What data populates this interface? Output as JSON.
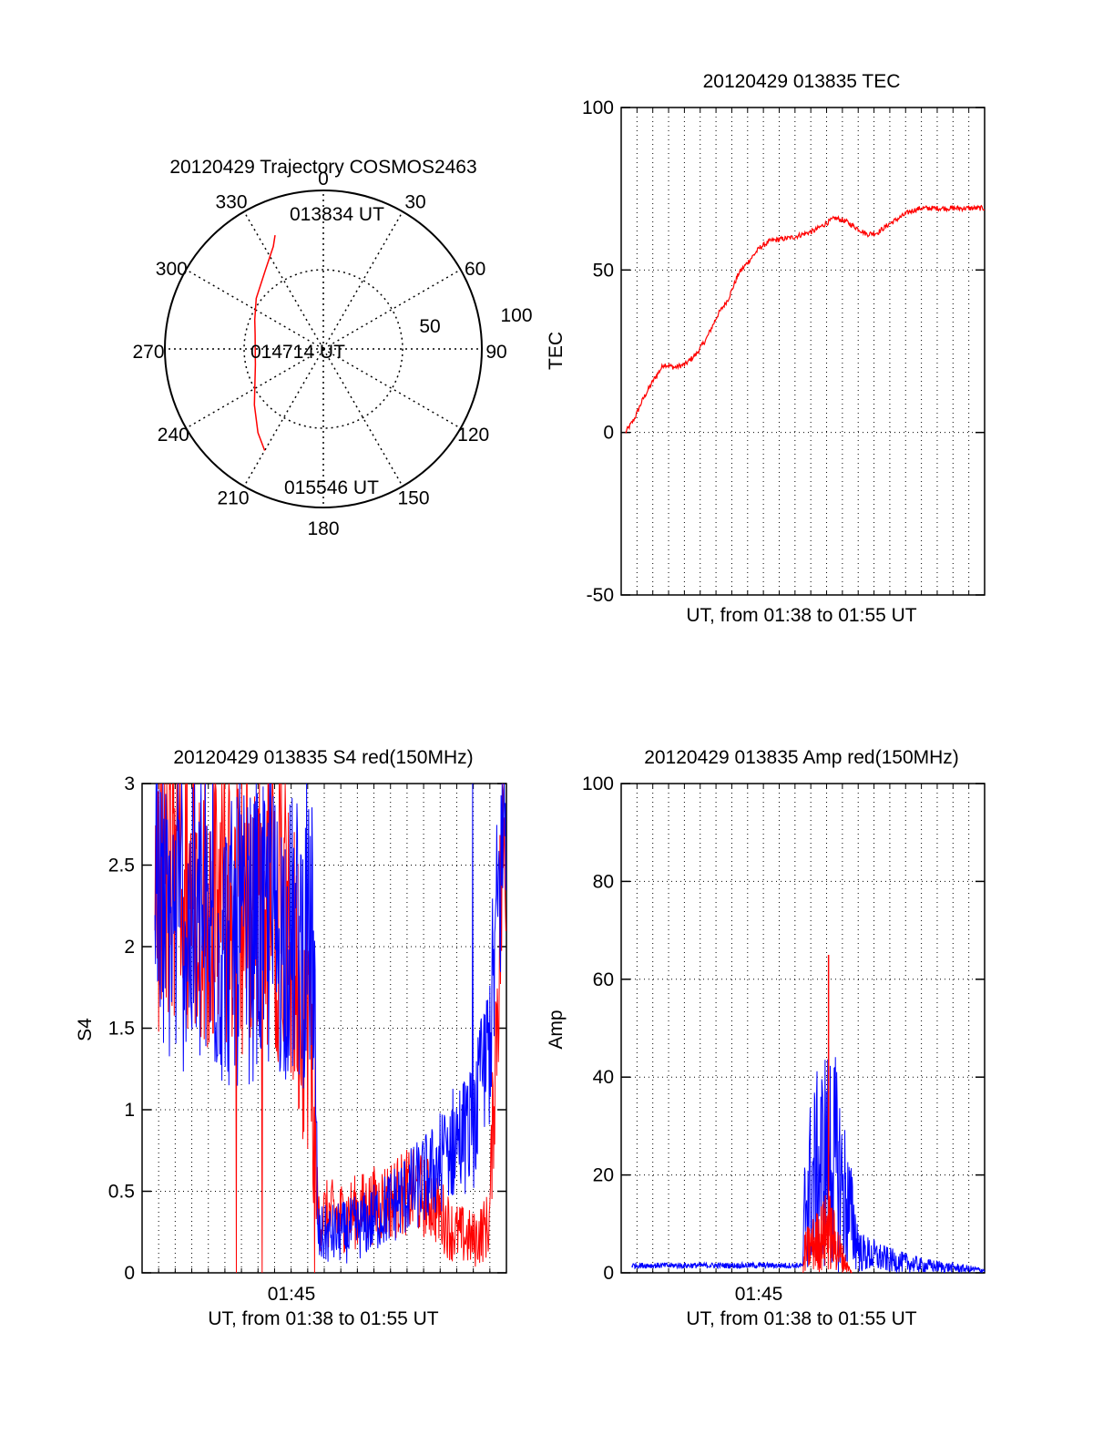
{
  "figure": {
    "background": "#ffffff"
  },
  "colors": {
    "red": "#ff0000",
    "blue": "#0000ff",
    "axis": "#000000",
    "grid": "#000000"
  },
  "chart_data": [
    {
      "id": "trajectory",
      "type": "polar",
      "title": "20120429 Trajectory COSMOS2463",
      "angle_labels": [
        "0",
        "30",
        "60",
        "90",
        "120",
        "150",
        "180",
        "210",
        "240",
        "270",
        "300",
        "330"
      ],
      "radial_labels": [
        "50",
        "100"
      ],
      "radial_range": [
        0,
        100
      ],
      "point_labels": [
        "013834 UT",
        "014714 UT",
        "015546 UT"
      ],
      "series": [
        {
          "color": "#ff0000",
          "azimuth_deg": [
            337,
            334,
            324,
            307,
            293,
            282,
            270,
            257,
            244,
            231,
            218,
            210
          ],
          "zenith_dist": [
            78,
            72,
            62,
            53,
            47,
            44,
            43,
            44,
            48,
            56,
            67,
            74
          ]
        }
      ],
      "grid": true
    },
    {
      "id": "tec",
      "type": "line",
      "title": "20120429 013835 TEC",
      "ylabel": "TEC",
      "xlabel": "UT, from 01:38 to 01:55 UT",
      "ylim": [
        -50,
        100
      ],
      "yticks": [
        "100",
        "50",
        "0",
        "-50"
      ],
      "xlim": [
        0,
        17
      ],
      "x_gridlines": 23,
      "grid": true,
      "series": [
        {
          "color": "#ff0000",
          "x": [
            0.2,
            0.6,
            1.0,
            1.5,
            2.0,
            2.5,
            3.0,
            3.5,
            4.0,
            4.5,
            5.0,
            5.5,
            6.0,
            6.5,
            7.0,
            7.5,
            8.0,
            8.5,
            9.0,
            9.5,
            10.0,
            10.5,
            11.0,
            11.5,
            12.0,
            12.5,
            13.0,
            13.5,
            14.0,
            14.5,
            15.0,
            15.5,
            16.0,
            16.5,
            17.0
          ],
          "y": [
            0,
            4,
            10,
            16,
            21,
            20,
            21,
            24,
            29,
            36,
            41,
            49,
            53,
            57,
            59,
            59.5,
            60,
            61,
            62,
            64,
            66,
            65,
            63,
            61,
            61.5,
            64,
            66,
            68,
            69,
            69,
            69,
            69,
            69,
            69,
            69
          ]
        }
      ]
    },
    {
      "id": "s4",
      "type": "line",
      "title": "20120429 013835 S4 red(150MHz)",
      "ylabel": "S4",
      "xlabel": "UT, from 01:38 to 01:55 UT",
      "xtick_label": "01:45",
      "ylim": [
        0,
        3
      ],
      "yticks": [
        "3",
        "2.5",
        "2",
        "1.5",
        "1",
        "0.5",
        "0"
      ],
      "xlim": [
        0,
        17
      ],
      "grid": true,
      "series": [
        {
          "color": "#0000ff",
          "base": [
            [
              0.0,
              2.2
            ],
            [
              2.0,
              2.1
            ],
            [
              4.0,
              2.0
            ],
            [
              6.0,
              2.1
            ],
            [
              8.0,
              2.0
            ],
            [
              8.2,
              0.22
            ],
            [
              9.5,
              0.25
            ],
            [
              10.5,
              0.3
            ],
            [
              11.5,
              0.4
            ],
            [
              12.5,
              0.5
            ],
            [
              13.5,
              0.6
            ],
            [
              14.5,
              0.8
            ],
            [
              15.5,
              0.9
            ],
            [
              16.2,
              1.4
            ],
            [
              17.0,
              3.0
            ]
          ]
        },
        {
          "color": "#ff0000",
          "base": [
            [
              0.0,
              2.4
            ],
            [
              2.0,
              2.3
            ],
            [
              4.0,
              2.2
            ],
            [
              6.0,
              2.3
            ],
            [
              7.8,
              1.6
            ],
            [
              8.2,
              0.35
            ],
            [
              9.5,
              0.35
            ],
            [
              10.5,
              0.4
            ],
            [
              11.5,
              0.45
            ],
            [
              12.5,
              0.5
            ],
            [
              13.5,
              0.45
            ],
            [
              14.5,
              0.25
            ],
            [
              15.5,
              0.2
            ],
            [
              16.2,
              0.3
            ],
            [
              16.6,
              1.8
            ],
            [
              17.0,
              3.0
            ]
          ]
        }
      ]
    },
    {
      "id": "amp",
      "type": "line",
      "title": "20120429 013835 Amp red(150MHz)",
      "ylabel": "Amp",
      "xlabel": "UT, from 01:38 to 01:55 UT",
      "xtick_label": "01:45",
      "ylim": [
        0,
        100
      ],
      "yticks": [
        "100",
        "80",
        "60",
        "40",
        "20",
        "0"
      ],
      "xlim": [
        0,
        17
      ],
      "x_gridlines": 23,
      "grid": true,
      "series": [
        {
          "color": "#0000ff",
          "base": [
            [
              0.0,
              1.5
            ],
            [
              8.5,
              1.5
            ],
            [
              8.6,
              30
            ],
            [
              9.2,
              40
            ],
            [
              9.8,
              48
            ],
            [
              10.3,
              35
            ],
            [
              10.8,
              20
            ],
            [
              11.2,
              8
            ],
            [
              12.5,
              5
            ],
            [
              14.0,
              3
            ],
            [
              15.5,
              2
            ],
            [
              17.0,
              1
            ]
          ]
        },
        {
          "color": "#ff0000",
          "base": [
            [
              8.5,
              0
            ],
            [
              8.6,
              8
            ],
            [
              9.2,
              12
            ],
            [
              9.7,
              16
            ],
            [
              10.2,
              8
            ],
            [
              10.6,
              2
            ],
            [
              10.8,
              0
            ]
          ]
        }
      ],
      "peaks": [
        {
          "color": "#ff0000",
          "x": 9.7,
          "y": 65
        }
      ]
    }
  ]
}
